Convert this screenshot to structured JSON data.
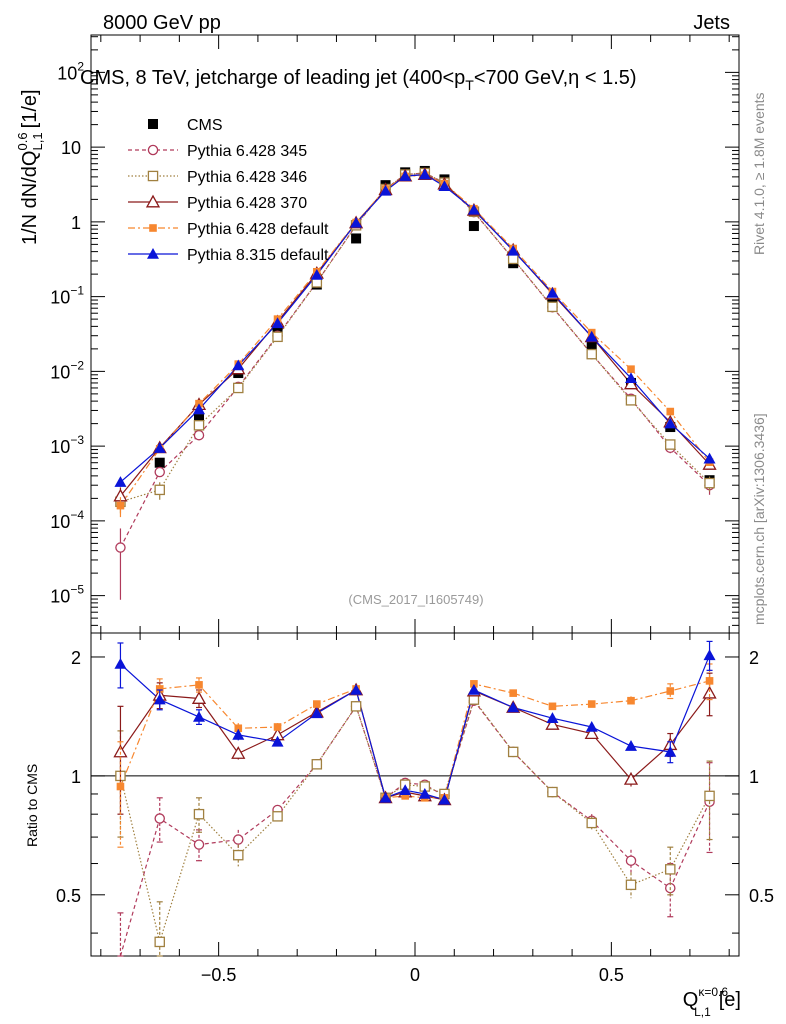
{
  "header": {
    "left_label": "8000 GeV pp",
    "right_label": "Jets"
  },
  "side_labels": {
    "rivet": "Rivet 4.1.0, ≥ 1.8M events",
    "mcplots": "mcplots.cern.ch [arXiv:1306.3436]"
  },
  "chart_data": {
    "type": "scatter",
    "title": "CMS, 8 TeV, jetcharge of leading jet (400<p_T<700 GeV,η < 1.5)",
    "title_parts": {
      "main": "CMS, 8 TeV, jetcharge of leading jet (400<p",
      "sub": "T",
      "tail": "<700 GeV,η < 1.5)"
    },
    "analysis_id": "(CMS_2017_I1605749)",
    "xlabel": {
      "base": "Q",
      "sup": "κ=0.6",
      "sub": "L,1",
      "unit": "[e]"
    },
    "ylabel": {
      "main": "1/N dN/dQ",
      "sup": "0.6",
      "sub": "L,1",
      "unit": "[1/e]"
    },
    "ratio_ylabel": "Ratio to CMS",
    "xlim": [
      -0.825,
      0.825
    ],
    "ylim_log10": [
      -5.5,
      2.5
    ],
    "ratio_ylim": [
      0.35,
      2.3
    ],
    "x_ticks": [
      {
        "value": -0.5,
        "label": "−0.5"
      },
      {
        "value": 0,
        "label": "0"
      },
      {
        "value": 0.5,
        "label": "0.5"
      }
    ],
    "y_ticks": [
      {
        "exp": 2,
        "label": "10",
        "sup": "2"
      },
      {
        "exp": 1,
        "label": "10",
        "sup": ""
      },
      {
        "exp": 0,
        "label": "1",
        "sup": ""
      },
      {
        "exp": -1,
        "label": "10",
        "sup": "−1"
      },
      {
        "exp": -2,
        "label": "10",
        "sup": "−2"
      },
      {
        "exp": -3,
        "label": "10",
        "sup": "−3"
      },
      {
        "exp": -4,
        "label": "10",
        "sup": "−4"
      },
      {
        "exp": -5,
        "label": "10",
        "sup": "−5"
      }
    ],
    "ratio_ticks": [
      {
        "value": 0.5,
        "label": "0.5"
      },
      {
        "value": 1,
        "label": "1"
      },
      {
        "value": 2,
        "label": "2"
      }
    ],
    "x": [
      -0.75,
      -0.65,
      -0.55,
      -0.45,
      -0.35,
      -0.25,
      -0.15,
      -0.075,
      -0.025,
      0.025,
      0.075,
      0.15,
      0.25,
      0.35,
      0.45,
      0.55,
      0.65,
      0.75
    ],
    "data_series": {
      "name": "CMS",
      "color": "#000000",
      "values": [
        0.00018,
        0.0006,
        0.0023,
        0.0095,
        0.037,
        0.145,
        0.6,
        3.1,
        4.6,
        4.8,
        3.7,
        0.88,
        0.28,
        0.08,
        0.022,
        0.007,
        0.0018,
        0.00035
      ]
    },
    "series": [
      {
        "name": "Pythia 6.428 345",
        "color": "#b03a5b",
        "marker": "open-circle",
        "dash": "4,3",
        "values": [
          4.4e-05,
          0.00045,
          0.0014,
          0.0062,
          0.03,
          0.155,
          0.9,
          2.75,
          4.3,
          4.5,
          3.3,
          1.35,
          0.32,
          0.072,
          0.017,
          0.0043,
          0.00095,
          0.0003
        ],
        "ratio": [
          0.25,
          0.78,
          0.67,
          0.69,
          0.82,
          1.07,
          1.5,
          0.88,
          0.96,
          0.95,
          0.89,
          1.55,
          1.15,
          0.91,
          0.77,
          0.61,
          0.52,
          0.86
        ],
        "ratio_err": [
          0.2,
          0.1,
          0.06,
          0.04,
          0.02,
          0.02,
          0.02,
          0.02,
          0.01,
          0.01,
          0.02,
          0.02,
          0.02,
          0.02,
          0.03,
          0.04,
          0.08,
          0.22
        ]
      },
      {
        "name": "Pythia 6.428 346",
        "color": "#a08040",
        "marker": "open-square",
        "dash": "1.5,2",
        "values": [
          0.00018,
          0.00026,
          0.0019,
          0.006,
          0.029,
          0.155,
          0.9,
          2.75,
          4.3,
          4.5,
          3.35,
          1.37,
          0.32,
          0.073,
          0.017,
          0.0041,
          0.00105,
          0.00032
        ],
        "ratio": [
          1.0,
          0.38,
          0.8,
          0.63,
          0.79,
          1.07,
          1.5,
          0.88,
          0.95,
          0.94,
          0.9,
          1.56,
          1.15,
          0.91,
          0.76,
          0.53,
          0.58,
          0.89
        ],
        "ratio_err": [
          0.3,
          0.1,
          0.08,
          0.04,
          0.02,
          0.02,
          0.02,
          0.02,
          0.01,
          0.01,
          0.02,
          0.02,
          0.02,
          0.02,
          0.03,
          0.04,
          0.08,
          0.2
        ]
      },
      {
        "name": "Pythia 6.428 370",
        "color": "#8b1a1a",
        "marker": "open-triangle",
        "dash": "",
        "values": [
          0.000215,
          0.00095,
          0.0036,
          0.0108,
          0.046,
          0.205,
          0.97,
          2.7,
          4.1,
          4.3,
          3.2,
          1.43,
          0.42,
          0.108,
          0.029,
          0.0068,
          0.0021,
          0.00057
        ],
        "ratio": [
          1.15,
          1.6,
          1.57,
          1.14,
          1.27,
          1.45,
          1.65,
          0.88,
          0.91,
          0.89,
          0.87,
          1.64,
          1.49,
          1.35,
          1.28,
          0.98,
          1.2,
          1.62
        ],
        "ratio_err": [
          0.35,
          0.12,
          0.08,
          0.04,
          0.03,
          0.02,
          0.02,
          0.02,
          0.01,
          0.01,
          0.02,
          0.02,
          0.02,
          0.02,
          0.03,
          0.04,
          0.08,
          0.2
        ]
      },
      {
        "name": "Pythia 6.428 default",
        "color": "#f7872f",
        "marker": "filled-square",
        "dash": "7,3,2,3",
        "values": [
          0.00016,
          0.00092,
          0.0037,
          0.0125,
          0.05,
          0.215,
          0.98,
          2.75,
          4.05,
          4.2,
          3.25,
          1.5,
          0.44,
          0.117,
          0.033,
          0.0107,
          0.0029,
          0.00061
        ],
        "ratio": [
          0.94,
          1.66,
          1.7,
          1.32,
          1.33,
          1.52,
          1.66,
          0.88,
          0.89,
          0.88,
          0.88,
          1.71,
          1.62,
          1.5,
          1.52,
          1.55,
          1.64,
          1.74
        ],
        "ratio_err": [
          0.28,
          0.1,
          0.07,
          0.04,
          0.03,
          0.02,
          0.02,
          0.02,
          0.01,
          0.01,
          0.02,
          0.02,
          0.02,
          0.02,
          0.03,
          0.04,
          0.07,
          0.18
        ]
      },
      {
        "name": "Pythia 8.315 default",
        "color": "#0a14d8",
        "marker": "filled-triangle",
        "dash": "",
        "values": [
          0.00033,
          0.00094,
          0.0031,
          0.012,
          0.044,
          0.195,
          0.97,
          2.6,
          4.1,
          4.3,
          3.0,
          1.45,
          0.41,
          0.112,
          0.029,
          0.0081,
          0.002,
          0.00068
        ],
        "ratio": [
          1.92,
          1.56,
          1.41,
          1.27,
          1.22,
          1.44,
          1.65,
          0.88,
          0.92,
          0.9,
          0.87,
          1.65,
          1.49,
          1.4,
          1.33,
          1.19,
          1.15,
          2.02
        ],
        "ratio_err": [
          0.25,
          0.09,
          0.06,
          0.04,
          0.03,
          0.02,
          0.02,
          0.02,
          0.01,
          0.01,
          0.02,
          0.02,
          0.02,
          0.02,
          0.03,
          0.03,
          0.07,
          0.17
        ]
      }
    ]
  }
}
